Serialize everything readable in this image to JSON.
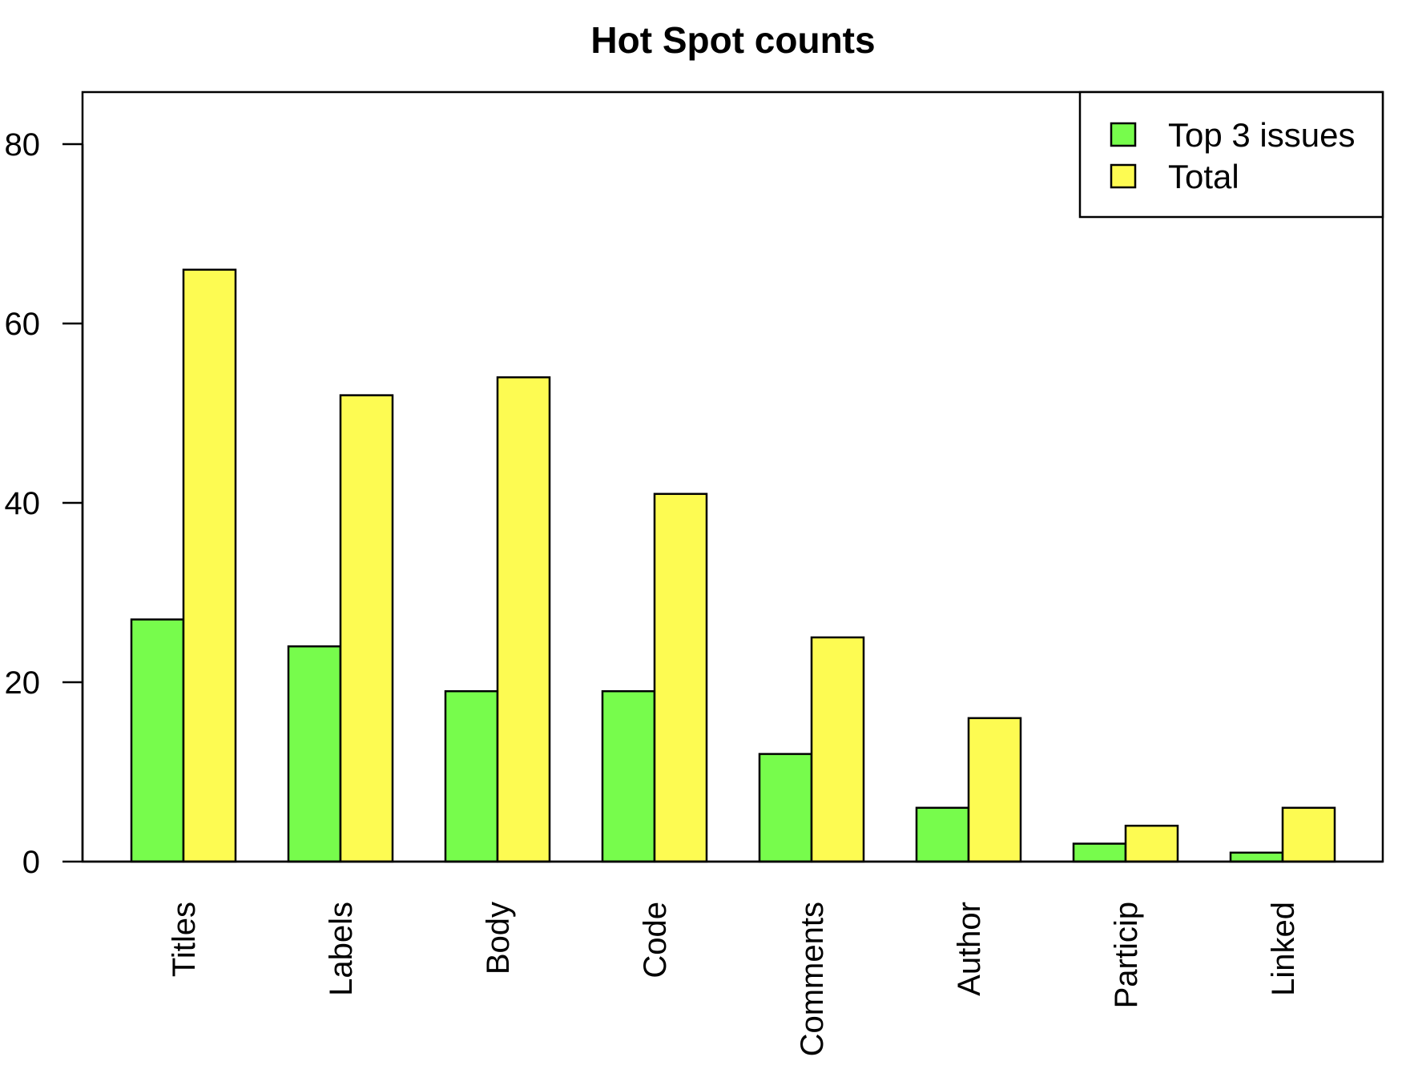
{
  "chart_data": {
    "type": "bar",
    "title": "Hot Spot counts",
    "xlabel": "",
    "ylabel": "",
    "categories": [
      "Titles",
      "Labels",
      "Body",
      "Code",
      "Comments",
      "Author",
      "Particip",
      "Linked"
    ],
    "series": [
      {
        "name": "Top 3 issues",
        "values": [
          27,
          24,
          19,
          19,
          12,
          6,
          2,
          1
        ],
        "color": "#77fc4c"
      },
      {
        "name": "Total",
        "values": [
          66,
          52,
          54,
          41,
          25,
          16,
          4,
          6
        ],
        "color": "#fdfb52"
      }
    ],
    "yticks": [
      "0",
      "20",
      "40",
      "60",
      "80"
    ],
    "ylim": [
      0,
      86
    ],
    "grid": false,
    "legend_position": "top-right"
  }
}
